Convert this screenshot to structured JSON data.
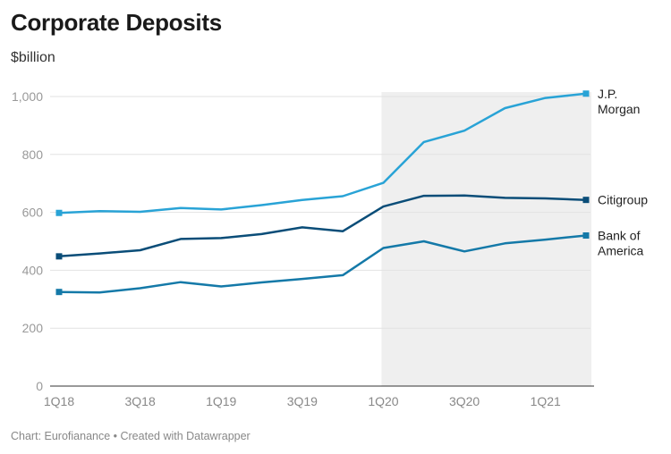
{
  "header": {
    "title": "Corporate Deposits",
    "subtitle": "$billion"
  },
  "footer": {
    "source": "Chart: Eurofianance • Created with Datawrapper"
  },
  "chart_data": {
    "type": "line",
    "title": "Corporate Deposits",
    "subtitle": "$billion",
    "xlabel": "",
    "ylabel": "",
    "ylim": [
      0,
      1000
    ],
    "yticks": [
      0,
      200,
      400,
      600,
      800,
      1000
    ],
    "ytick_labels": [
      "0",
      "200",
      "400",
      "600",
      "800",
      "1,000"
    ],
    "x": [
      "1Q18",
      "2Q18",
      "3Q18",
      "4Q18",
      "1Q19",
      "2Q19",
      "3Q19",
      "4Q19",
      "1Q20",
      "2Q20",
      "3Q20",
      "4Q20",
      "1Q21",
      "2Q21"
    ],
    "xtick_labels": [
      "1Q18",
      "",
      "3Q18",
      "",
      "1Q19",
      "",
      "3Q19",
      "",
      "1Q20",
      "",
      "3Q20",
      "",
      "1Q21",
      ""
    ],
    "shaded_range": [
      "1Q20",
      "2Q21"
    ],
    "grid": "horizontal",
    "series": [
      {
        "name": "J.P. Morgan",
        "label_lines": [
          "J.P.",
          "Morgan"
        ],
        "color": "#29a3d6",
        "values": [
          598,
          604,
          602,
          615,
          610,
          625,
          643,
          656,
          702,
          843,
          882,
          960,
          995,
          1010
        ]
      },
      {
        "name": "Citigroup",
        "label_lines": [
          "Citigroup"
        ],
        "color": "#0a4d78",
        "values": [
          448,
          458,
          469,
          508,
          511,
          525,
          548,
          535,
          620,
          657,
          658,
          650,
          648,
          643
        ]
      },
      {
        "name": "Bank of America",
        "label_lines": [
          "Bank of",
          "America"
        ],
        "color": "#1479a8",
        "values": [
          325,
          323,
          338,
          359,
          344,
          358,
          370,
          383,
          477,
          500,
          465,
          493,
          506,
          520
        ]
      }
    ]
  }
}
